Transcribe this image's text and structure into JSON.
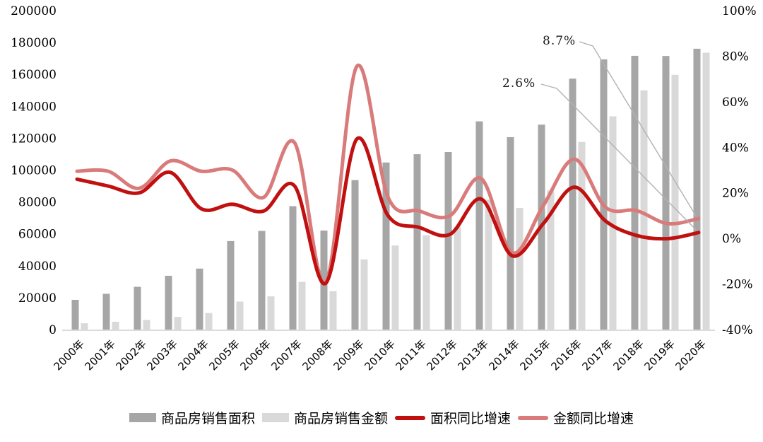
{
  "chart_data": {
    "type": "bar+line combo",
    "title": "",
    "categories": [
      "2000年",
      "2001年",
      "2002年",
      "2003年",
      "2004年",
      "2005年",
      "2006年",
      "2007年",
      "2008年",
      "2009年",
      "2010年",
      "2011年",
      "2012年",
      "2013年",
      "2014年",
      "2015年",
      "2016年",
      "2017年",
      "2018年",
      "2019年",
      "2020年"
    ],
    "series": [
      {
        "name": "商品房销售面积",
        "type": "bar",
        "axis": "left",
        "color": "#a6a6a6",
        "values": [
          18637,
          22412,
          26808,
          33718,
          38232,
          55486,
          61857,
          77355,
          62089,
          93713,
          104765,
          109946,
          111304,
          130551,
          120649,
          128495,
          157349,
          169408,
          171654,
          171558,
          176086
        ]
      },
      {
        "name": "商品房销售金额",
        "type": "bar",
        "axis": "left",
        "color": "#d9d9d9",
        "values": [
          3935,
          4863,
          6032,
          7956,
          10376,
          17576,
          20826,
          29889,
          24071,
          43995,
          52721,
          59119,
          64456,
          81428,
          76292,
          87281,
          117627,
          133701,
          149973,
          159725,
          173613
        ]
      },
      {
        "name": "面积同比增速",
        "type": "line",
        "axis": "right",
        "color": "#c01010",
        "values": [
          26,
          23,
          20,
          29,
          13,
          15,
          12,
          23,
          -19.7,
          43.6,
          10.1,
          4.9,
          1.8,
          17.3,
          -7.6,
          6.5,
          22.5,
          7.7,
          1.3,
          -0.1,
          2.6
        ]
      },
      {
        "name": "金额同比增速",
        "type": "line",
        "axis": "right",
        "color": "#d97b7b",
        "values": [
          29.5,
          29.5,
          22,
          34,
          29.5,
          30,
          18,
          42,
          -19.5,
          75.5,
          18.3,
          12.1,
          10.0,
          26.3,
          -6.3,
          14.4,
          34.8,
          13.7,
          12.2,
          6.5,
          8.7
        ]
      }
    ],
    "left_axis": {
      "min": 0,
      "max": 200000,
      "step": 20000,
      "tick_labels": [
        "0",
        "20000",
        "40000",
        "60000",
        "80000",
        "100000",
        "120000",
        "140000",
        "160000",
        "180000",
        "200000"
      ]
    },
    "right_axis": {
      "min": -40,
      "max": 100,
      "step": 20,
      "tick_labels": [
        "-40%",
        "-20%",
        "0%",
        "20%",
        "40%",
        "60%",
        "80%",
        "100%"
      ]
    },
    "annotations": [
      {
        "label": "8.7%",
        "series": "金额同比增速",
        "category": "2020年",
        "value": 8.7
      },
      {
        "label": "2.6%",
        "series": "面积同比增速",
        "category": "2020年",
        "value": 2.6
      }
    ],
    "legend_position": "bottom",
    "grid": false,
    "colors": {
      "bar_area": "#a6a6a6",
      "bar_amount": "#d9d9d9",
      "line_area_growth": "#c01010",
      "line_amount_growth": "#d97b7b",
      "leader_line": "#b2b2b2",
      "axis_line": "#cfcfcf",
      "text": "#000000"
    }
  }
}
